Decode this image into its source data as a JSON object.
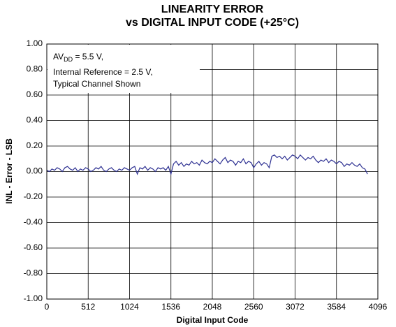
{
  "chart_data": {
    "type": "line",
    "title": "LINEARITY ERROR",
    "subtitle": "vs DIGITAL INPUT CODE (+25°C)",
    "x_label": "Digital Input Code",
    "y_label": "INL - Error - LSB",
    "annotation": [
      "AV",
      "DD",
      " = 5.5 V,",
      "Internal Reference = 2.5 V,",
      "Typical Channel Shown"
    ],
    "grid": true,
    "xlim": [
      0,
      4096
    ],
    "xticks": [
      0,
      512,
      1024,
      1536,
      2048,
      2560,
      3072,
      3584,
      4096
    ],
    "ylim": [
      -1,
      1
    ],
    "yticks": [
      {
        "value": 1,
        "label": "1.00"
      },
      {
        "value": 0.8,
        "label": "0.80"
      },
      {
        "value": 0.6,
        "label": "0.60"
      },
      {
        "value": 0.4,
        "label": "0.40"
      },
      {
        "value": 0.2,
        "label": "0.20"
      },
      {
        "value": 0,
        "label": "0.00"
      },
      {
        "value": -0.2,
        "label": "-0.20"
      },
      {
        "value": -0.4,
        "label": "-0.40"
      },
      {
        "value": -0.6,
        "label": "-0.60"
      },
      {
        "value": -0.8,
        "label": "-0.80"
      },
      {
        "value": -1,
        "label": "-1.00"
      }
    ],
    "x": [
      0,
      32,
      64,
      96,
      128,
      160,
      192,
      224,
      256,
      288,
      320,
      352,
      384,
      416,
      448,
      480,
      512,
      544,
      576,
      608,
      640,
      672,
      704,
      736,
      768,
      800,
      832,
      864,
      896,
      928,
      960,
      992,
      1024,
      1056,
      1088,
      1120,
      1152,
      1184,
      1216,
      1248,
      1280,
      1312,
      1344,
      1376,
      1408,
      1440,
      1472,
      1504,
      1536,
      1568,
      1600,
      1632,
      1664,
      1696,
      1728,
      1760,
      1792,
      1824,
      1856,
      1888,
      1920,
      1952,
      1984,
      2016,
      2048,
      2080,
      2112,
      2144,
      2176,
      2208,
      2240,
      2272,
      2304,
      2336,
      2368,
      2400,
      2432,
      2464,
      2496,
      2528,
      2560,
      2592,
      2624,
      2656,
      2688,
      2720,
      2752,
      2784,
      2816,
      2848,
      2880,
      2912,
      2944,
      2976,
      3008,
      3040,
      3072,
      3104,
      3136,
      3168,
      3200,
      3232,
      3264,
      3296,
      3328,
      3360,
      3392,
      3424,
      3456,
      3488,
      3520,
      3552,
      3584,
      3616,
      3648,
      3680,
      3712,
      3744,
      3776,
      3808,
      3840,
      3872,
      3904,
      3936,
      3968
    ],
    "series": [
      {
        "name": "INL",
        "color": "#2e3192",
        "values": [
          0.01,
          0.0,
          0.02,
          0.01,
          0.03,
          0.02,
          0.0,
          0.03,
          0.04,
          0.02,
          0.01,
          0.03,
          0.0,
          0.02,
          0.01,
          0.03,
          0.02,
          0.0,
          0.01,
          0.03,
          0.02,
          0.04,
          0.01,
          0.0,
          0.02,
          0.03,
          0.01,
          0.0,
          0.02,
          0.01,
          0.03,
          0.02,
          0.01,
          0.03,
          0.04,
          -0.02,
          0.03,
          0.02,
          0.04,
          0.01,
          0.03,
          0.02,
          0.0,
          0.03,
          0.02,
          0.03,
          0.01,
          0.04,
          -0.02,
          0.06,
          0.08,
          0.05,
          0.07,
          0.04,
          0.06,
          0.05,
          0.08,
          0.06,
          0.07,
          0.05,
          0.09,
          0.07,
          0.06,
          0.08,
          0.07,
          0.1,
          0.08,
          0.06,
          0.09,
          0.11,
          0.07,
          0.09,
          0.08,
          0.05,
          0.08,
          0.07,
          0.1,
          0.06,
          0.08,
          0.07,
          0.03,
          0.06,
          0.08,
          0.05,
          0.07,
          0.06,
          0.03,
          0.12,
          0.13,
          0.11,
          0.12,
          0.1,
          0.12,
          0.09,
          0.11,
          0.13,
          0.12,
          0.1,
          0.13,
          0.11,
          0.09,
          0.11,
          0.1,
          0.12,
          0.09,
          0.07,
          0.09,
          0.08,
          0.1,
          0.07,
          0.09,
          0.08,
          0.06,
          0.08,
          0.07,
          0.04,
          0.06,
          0.05,
          0.07,
          0.05,
          0.04,
          0.06,
          0.03,
          0.02,
          -0.02
        ]
      }
    ]
  }
}
